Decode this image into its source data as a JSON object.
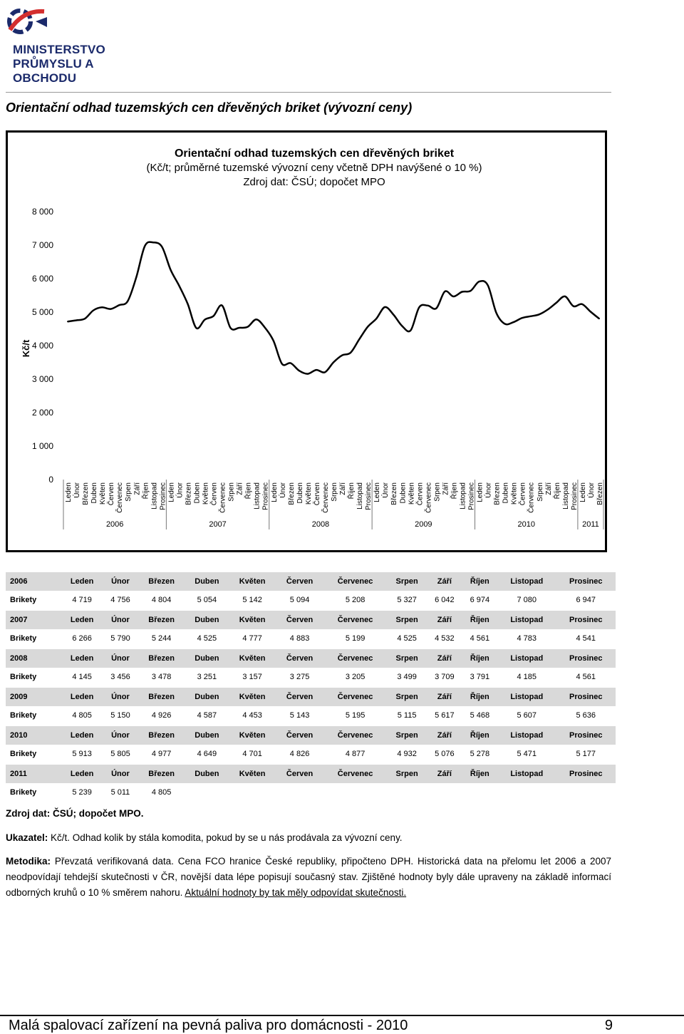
{
  "brand": {
    "logo_line1": "MINISTERSTVO",
    "logo_line2": "PRŮMYSLU A OBCHODU",
    "colors": {
      "blue": "#1b2a6b",
      "red": "#d32f2f"
    }
  },
  "document": {
    "title": "Orientační odhad tuzemských cen dřevěných briket (vývozní ceny)"
  },
  "chart_data": {
    "type": "line",
    "title_line1": "Orientační odhad tuzemských cen dřevěných briket",
    "title_line2": "(Kč/t; průměrné tuzemské vývozní ceny včetně DPH navýšené o 10 %)",
    "title_line3": "Zdroj dat: ČSÚ; dopočet MPO",
    "ylabel": "Kč/t",
    "ylim": [
      0,
      8000
    ],
    "yticks": [
      "0",
      "1 000",
      "2 000",
      "3 000",
      "4 000",
      "5 000",
      "6 000",
      "7 000",
      "8 000"
    ],
    "grid": false,
    "line_color": "#000000",
    "month_labels": [
      "Leden",
      "Únor",
      "Březen",
      "Duben",
      "Květen",
      "Červen",
      "Červenec",
      "Srpen",
      "Září",
      "Říjen",
      "Listopad",
      "Prosinec"
    ],
    "years": [
      "2006",
      "2007",
      "2008",
      "2009",
      "2010",
      "2011"
    ],
    "values": [
      4719,
      4756,
      4804,
      5054,
      5142,
      5094,
      5208,
      5327,
      6042,
      6974,
      7080,
      6947,
      6266,
      5790,
      5244,
      4525,
      4777,
      4883,
      5199,
      4525,
      4532,
      4561,
      4783,
      4541,
      4145,
      3456,
      3478,
      3251,
      3157,
      3275,
      3205,
      3499,
      3709,
      3791,
      4185,
      4561,
      4805,
      5150,
      4926,
      4587,
      4453,
      5143,
      5195,
      5115,
      5617,
      5468,
      5607,
      5636,
      5913,
      5805,
      4977,
      4649,
      4701,
      4826,
      4877,
      4932,
      5076,
      5278,
      5471,
      5177,
      5239,
      5011,
      4805
    ]
  },
  "table": {
    "row_label": "Brikety",
    "months": [
      "Leden",
      "Únor",
      "Březen",
      "Duben",
      "Květen",
      "Červen",
      "Červenec",
      "Srpen",
      "Září",
      "Říjen",
      "Listopad",
      "Prosinec"
    ],
    "years": [
      {
        "year": "2006",
        "values": [
          "4 719",
          "4 756",
          "4 804",
          "5 054",
          "5 142",
          "5 094",
          "5 208",
          "5 327",
          "6 042",
          "6 974",
          "7 080",
          "6 947"
        ]
      },
      {
        "year": "2007",
        "values": [
          "6 266",
          "5 790",
          "5 244",
          "4 525",
          "4 777",
          "4 883",
          "5 199",
          "4 525",
          "4 532",
          "4 561",
          "4 783",
          "4 541"
        ]
      },
      {
        "year": "2008",
        "values": [
          "4 145",
          "3 456",
          "3 478",
          "3 251",
          "3 157",
          "3 275",
          "3 205",
          "3 499",
          "3 709",
          "3 791",
          "4 185",
          "4 561"
        ]
      },
      {
        "year": "2009",
        "values": [
          "4 805",
          "5 150",
          "4 926",
          "4 587",
          "4 453",
          "5 143",
          "5 195",
          "5 115",
          "5 617",
          "5 468",
          "5 607",
          "5 636"
        ]
      },
      {
        "year": "2010",
        "values": [
          "5 913",
          "5 805",
          "4 977",
          "4 649",
          "4 701",
          "4 826",
          "4 877",
          "4 932",
          "5 076",
          "5 278",
          "5 471",
          "5 177"
        ]
      },
      {
        "year": "2011",
        "values": [
          "5 239",
          "5 011",
          "4 805",
          "",
          "",
          "",
          "",
          "",
          "",
          "",
          "",
          ""
        ]
      }
    ]
  },
  "notes": {
    "source_label": "Zdroj dat:",
    "source_text": "ČSÚ; dopočet MPO.",
    "indicator_label": "Ukazatel:",
    "indicator_text": "Kč/t. Odhad kolik by stála komodita, pokud by se u nás prodávala za vývozní ceny.",
    "method_label": "Metodika:",
    "method_text": "Převzatá verifikovaná data. Cena FCO hranice České republiky, připočteno DPH. Historická data na přelomu let 2006 a 2007 neodpovídají tehdejší skutečnosti v ČR, novější data lépe popisují současný stav. Zjištěné hodnoty byly dále upraveny na základě informací odborných kruhů o 10 % směrem nahoru.",
    "method_underlined": "Aktuální hodnoty by tak měly odpovídat skutečnosti."
  },
  "footer": {
    "left": "Malá spalovací zařízení na pevná paliva pro domácnosti - 2010",
    "page": "9"
  }
}
